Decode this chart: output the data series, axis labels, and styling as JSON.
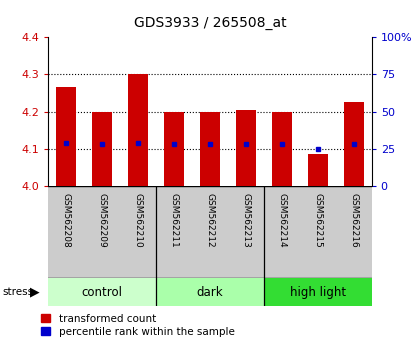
{
  "title": "GDS3933 / 265508_at",
  "samples": [
    "GSM562208",
    "GSM562209",
    "GSM562210",
    "GSM562211",
    "GSM562212",
    "GSM562213",
    "GSM562214",
    "GSM562215",
    "GSM562216"
  ],
  "bar_values": [
    4.265,
    4.2,
    4.3,
    4.2,
    4.2,
    4.205,
    4.2,
    4.085,
    4.225
  ],
  "percentile_values": [
    4.115,
    4.113,
    4.115,
    4.112,
    4.113,
    4.113,
    4.113,
    4.099,
    4.113
  ],
  "ylim": [
    4.0,
    4.4
  ],
  "yticks": [
    4.0,
    4.1,
    4.2,
    4.3,
    4.4
  ],
  "right_yticks": [
    0,
    25,
    50,
    75,
    100
  ],
  "bar_color": "#cc0000",
  "percentile_color": "#0000cc",
  "bar_width": 0.55,
  "groups": [
    {
      "label": "control",
      "indices": [
        0,
        1,
        2
      ],
      "color": "#ccffcc"
    },
    {
      "label": "dark",
      "indices": [
        3,
        4,
        5
      ],
      "color": "#aaffaa"
    },
    {
      "label": "high light",
      "indices": [
        6,
        7,
        8
      ],
      "color": "#33dd33"
    }
  ],
  "stress_label": "stress",
  "legend_bar_label": "transformed count",
  "legend_pct_label": "percentile rank within the sample",
  "title_fontsize": 10,
  "axis_color_left": "#cc0000",
  "axis_color_right": "#0000cc",
  "tick_area_bg": "#cccccc",
  "grid_color": "#000000",
  "xlim": [
    -0.5,
    8.5
  ]
}
